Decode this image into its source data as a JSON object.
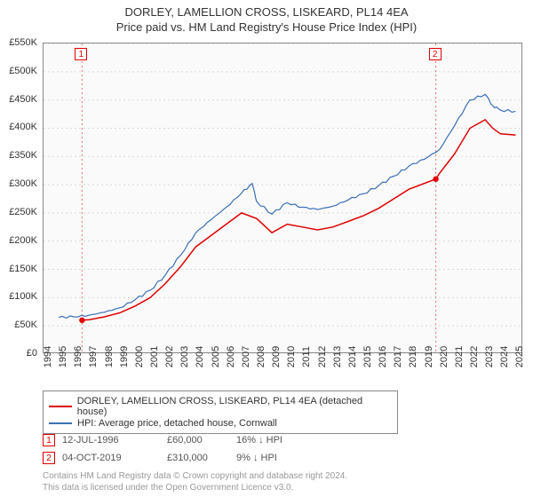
{
  "title_line1": "DORLEY, LAMELLION CROSS, LISKEARD, PL14 4EA",
  "title_line2": "Price paid vs. HM Land Registry's House Price Index (HPI)",
  "chart": {
    "type": "line",
    "background_color": "#fafafa",
    "border_color": "#888888",
    "grid_color": "#d9d9d9",
    "grid_dash": "2,3",
    "axis_text_color": "#333333",
    "x": {
      "min": 1994,
      "max": 2025.5,
      "ticks": [
        1994,
        1995,
        1996,
        1997,
        1998,
        1999,
        2000,
        2001,
        2002,
        2003,
        2004,
        2005,
        2006,
        2007,
        2008,
        2009,
        2010,
        2011,
        2012,
        2013,
        2014,
        2015,
        2016,
        2017,
        2018,
        2019,
        2020,
        2021,
        2022,
        2023,
        2024,
        2025
      ]
    },
    "y": {
      "min": 0,
      "max": 550000,
      "ticks": [
        0,
        50000,
        100000,
        150000,
        200000,
        250000,
        300000,
        350000,
        400000,
        450000,
        500000,
        550000
      ],
      "tick_labels": [
        "£0",
        "£50K",
        "£100K",
        "£150K",
        "£200K",
        "£250K",
        "£300K",
        "£350K",
        "£400K",
        "£450K",
        "£500K",
        "£550K"
      ]
    },
    "tick_fontsize": 11,
    "series": [
      {
        "name": "DORLEY, LAMELLION CROSS, LISKEARD, PL14 4EA (detached house)",
        "color": "#e00000",
        "width": 1.5,
        "points": [
          [
            1996.53,
            60000
          ],
          [
            1997,
            61000
          ],
          [
            1998,
            66000
          ],
          [
            1999,
            73000
          ],
          [
            2000,
            85000
          ],
          [
            2001,
            100000
          ],
          [
            2002,
            125000
          ],
          [
            2003,
            155000
          ],
          [
            2004,
            190000
          ],
          [
            2005,
            210000
          ],
          [
            2006,
            230000
          ],
          [
            2007,
            250000
          ],
          [
            2008,
            240000
          ],
          [
            2009,
            215000
          ],
          [
            2010,
            230000
          ],
          [
            2011,
            225000
          ],
          [
            2012,
            220000
          ],
          [
            2013,
            225000
          ],
          [
            2014,
            235000
          ],
          [
            2015,
            245000
          ],
          [
            2016,
            258000
          ],
          [
            2017,
            275000
          ],
          [
            2018,
            292000
          ],
          [
            2019.76,
            310000
          ],
          [
            2020,
            320000
          ],
          [
            2021,
            355000
          ],
          [
            2022,
            400000
          ],
          [
            2023,
            415000
          ],
          [
            2023.5,
            400000
          ],
          [
            2024,
            390000
          ],
          [
            2025,
            388000
          ]
        ]
      },
      {
        "name": "HPI: Average price, detached house, Cornwall",
        "color": "#3b6fb6",
        "width": 1.2,
        "points": [
          [
            1995,
            65000
          ],
          [
            1996,
            66000
          ],
          [
            1997,
            69000
          ],
          [
            1998,
            74000
          ],
          [
            1999,
            82000
          ],
          [
            2000,
            96000
          ],
          [
            2001,
            113000
          ],
          [
            2002,
            140000
          ],
          [
            2003,
            175000
          ],
          [
            2004,
            215000
          ],
          [
            2005,
            238000
          ],
          [
            2006,
            260000
          ],
          [
            2007,
            285000
          ],
          [
            2007.7,
            302000
          ],
          [
            2008,
            270000
          ],
          [
            2009,
            248000
          ],
          [
            2010,
            268000
          ],
          [
            2011,
            260000
          ],
          [
            2012,
            256000
          ],
          [
            2013,
            262000
          ],
          [
            2014,
            273000
          ],
          [
            2015,
            284000
          ],
          [
            2016,
            298000
          ],
          [
            2017,
            315000
          ],
          [
            2018,
            333000
          ],
          [
            2019,
            345000
          ],
          [
            2020,
            362000
          ],
          [
            2021,
            405000
          ],
          [
            2022,
            450000
          ],
          [
            2023,
            460000
          ],
          [
            2023.5,
            440000
          ],
          [
            2024,
            432000
          ],
          [
            2025,
            430000
          ]
        ]
      }
    ],
    "sale_markers": [
      {
        "n": "1",
        "year": 1996.53,
        "price": 60000,
        "color": "#e00000"
      },
      {
        "n": "2",
        "year": 2019.76,
        "price": 310000,
        "color": "#e00000"
      }
    ],
    "marker_dot_radius": 3.2
  },
  "legend": {
    "items": [
      {
        "color": "#e00000",
        "label": "DORLEY, LAMELLION CROSS, LISKEARD, PL14 4EA (detached house)"
      },
      {
        "color": "#3b6fb6",
        "label": "HPI: Average price, detached house, Cornwall"
      }
    ],
    "fontsize": 11,
    "border_color": "#888888"
  },
  "sales_table": {
    "rows": [
      {
        "n": "1",
        "color": "#e00000",
        "date": "12-JUL-1996",
        "price": "£60,000",
        "diff": "16% ↓ HPI"
      },
      {
        "n": "2",
        "color": "#e00000",
        "date": "04-OCT-2019",
        "price": "£310,000",
        "diff": "9% ↓ HPI"
      }
    ],
    "fontsize": 11,
    "text_color": "#555555"
  },
  "footer": {
    "line1": "Contains HM Land Registry data © Crown copyright and database right 2024.",
    "line2": "This data is licensed under the Open Government Licence v3.0.",
    "color": "#999999",
    "fontsize": 10
  }
}
